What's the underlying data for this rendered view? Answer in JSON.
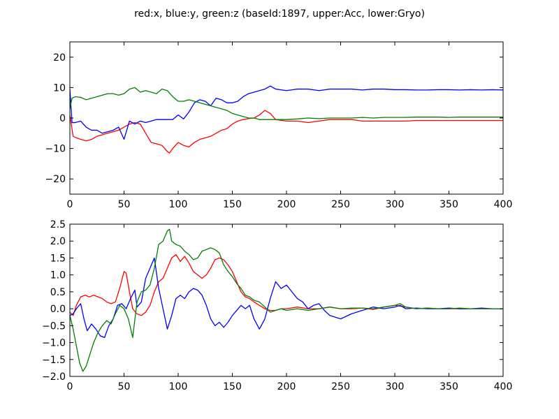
{
  "figure": {
    "title": "red:x, blue:y, green:z (baseId:1897, upper:Acc, lower:Gryo)"
  },
  "colors": {
    "x": "#ff0000",
    "y": "#0000ff",
    "z": "#008000"
  },
  "chart_data": [
    {
      "type": "line",
      "title": "",
      "xlabel": "",
      "ylabel": "",
      "xlim": [
        0,
        400
      ],
      "ylim": [
        -25,
        25
      ],
      "xticks": [
        0,
        50,
        100,
        150,
        200,
        250,
        300,
        350,
        400
      ],
      "yticks": [
        -20,
        -10,
        0,
        10,
        20
      ],
      "grid": false,
      "series": [
        {
          "key": "x",
          "x": [
            0,
            3,
            6,
            10,
            15,
            20,
            25,
            30,
            35,
            40,
            45,
            50,
            55,
            60,
            65,
            70,
            75,
            80,
            85,
            90,
            92,
            95,
            100,
            105,
            110,
            115,
            120,
            125,
            130,
            135,
            140,
            145,
            150,
            155,
            160,
            165,
            170,
            175,
            180,
            185,
            190,
            200,
            210,
            220,
            230,
            240,
            250,
            260,
            270,
            280,
            290,
            300,
            310,
            320,
            330,
            340,
            350,
            360,
            370,
            380,
            390,
            400
          ],
          "values": [
            1,
            -6,
            -6.5,
            -7,
            -7.5,
            -7,
            -6,
            -5.5,
            -5,
            -4.5,
            -4,
            -3,
            -2,
            -1.5,
            -2,
            -5,
            -8,
            -8.5,
            -9,
            -11,
            -11.5,
            -10,
            -8,
            -9,
            -9.5,
            -8,
            -7,
            -6.5,
            -6,
            -5,
            -4,
            -3.5,
            -2,
            -1,
            -0.5,
            -0.2,
            0,
            1,
            2.5,
            1.5,
            -0.5,
            -1,
            -1,
            -1.5,
            -1,
            -0.5,
            -0.5,
            -0.5,
            -1,
            -1,
            -1,
            -1,
            -1,
            -0.8,
            -0.8,
            -0.8,
            -0.8,
            -0.8,
            -0.8,
            -0.8,
            -0.8,
            -0.8
          ]
        },
        {
          "key": "y",
          "x": [
            0,
            2,
            5,
            10,
            15,
            20,
            25,
            30,
            35,
            40,
            45,
            50,
            55,
            60,
            65,
            70,
            75,
            80,
            85,
            90,
            95,
            100,
            105,
            110,
            115,
            120,
            125,
            130,
            135,
            140,
            145,
            150,
            155,
            160,
            165,
            170,
            175,
            180,
            185,
            190,
            200,
            210,
            220,
            230,
            240,
            250,
            260,
            270,
            280,
            290,
            300,
            310,
            320,
            330,
            340,
            350,
            360,
            370,
            380,
            390,
            400
          ],
          "values": [
            9.5,
            -1.5,
            -1.5,
            -1,
            -3,
            -4,
            -4,
            -5,
            -4.5,
            -4,
            -3,
            -7,
            -1,
            -2,
            -1,
            -1.5,
            -1,
            -0.5,
            -0.5,
            -0.5,
            -0.5,
            1,
            -0.3,
            2,
            5,
            6,
            5.5,
            4,
            6.5,
            6,
            5,
            5,
            5.5,
            7,
            8,
            8.5,
            9,
            9.5,
            10.5,
            9.5,
            9,
            9.5,
            9.5,
            9,
            9.5,
            9.5,
            9.5,
            9.2,
            9.5,
            9.5,
            9.3,
            9.3,
            9.2,
            9.2,
            9.3,
            9.3,
            9.2,
            9.3,
            9.2,
            9.3,
            9.2
          ]
        },
        {
          "key": "z",
          "x": [
            0,
            2,
            5,
            10,
            15,
            20,
            25,
            30,
            35,
            40,
            45,
            50,
            55,
            60,
            65,
            70,
            75,
            80,
            85,
            90,
            95,
            100,
            105,
            110,
            115,
            120,
            125,
            130,
            135,
            140,
            145,
            150,
            155,
            160,
            165,
            170,
            175,
            180,
            185,
            190,
            200,
            210,
            220,
            230,
            240,
            250,
            260,
            270,
            280,
            290,
            300,
            310,
            320,
            330,
            340,
            350,
            360,
            370,
            380,
            390,
            400
          ],
          "values": [
            3,
            6.5,
            7,
            6.8,
            6,
            6.5,
            7,
            7.5,
            8,
            8,
            7.5,
            8,
            9.5,
            10,
            8.5,
            9,
            8.5,
            8,
            9.5,
            9,
            7,
            5.5,
            5.5,
            6,
            5.5,
            5,
            4.5,
            4,
            3.5,
            3,
            2.5,
            1.5,
            1,
            0.5,
            0,
            0,
            -0.5,
            -0.5,
            -0.5,
            -0.5,
            -0.5,
            -0.3,
            0,
            -0.2,
            0,
            0,
            0,
            0.2,
            0,
            0.2,
            0.2,
            0.2,
            0.3,
            0.3,
            0.3,
            0.2,
            0.3,
            0.3,
            0.3,
            0.3,
            0.3
          ]
        }
      ]
    },
    {
      "type": "line",
      "title": "",
      "xlabel": "",
      "ylabel": "",
      "xlim": [
        0,
        400
      ],
      "ylim": [
        -2.0,
        2.5
      ],
      "xticks": [
        0,
        50,
        100,
        150,
        200,
        250,
        300,
        350,
        400
      ],
      "yticks": [
        -2.0,
        -1.5,
        -1.0,
        -0.5,
        0.0,
        0.5,
        1.0,
        1.5,
        2.0,
        2.5
      ],
      "ytick_labels": [
        "−2.0",
        "−1.5",
        "−1.0",
        "−0.5",
        "0.0",
        "0.5",
        "1.0",
        "1.5",
        "2.0",
        "2.5"
      ],
      "grid": false,
      "series": [
        {
          "key": "x",
          "x": [
            0,
            3,
            6,
            10,
            14,
            18,
            22,
            26,
            30,
            34,
            38,
            42,
            46,
            50,
            52,
            55,
            58,
            62,
            66,
            70,
            74,
            78,
            82,
            86,
            90,
            94,
            98,
            102,
            106,
            110,
            114,
            118,
            122,
            126,
            130,
            134,
            138,
            142,
            146,
            150,
            154,
            158,
            162,
            166,
            170,
            175,
            180,
            185,
            190,
            195,
            200,
            210,
            220,
            230,
            240,
            250,
            260,
            270,
            280,
            290,
            300,
            310,
            320,
            330,
            340,
            350,
            360,
            370,
            380,
            390,
            400
          ],
          "values": [
            -0.1,
            -0.2,
            0.1,
            0.35,
            0.4,
            0.35,
            0.4,
            0.35,
            0.3,
            0.2,
            0.15,
            0.2,
            0.6,
            1.1,
            1.05,
            0.5,
            0.0,
            -0.15,
            -0.2,
            -0.1,
            0.1,
            0.5,
            0.8,
            0.9,
            1.2,
            1.5,
            1.6,
            1.4,
            1.55,
            1.35,
            1.1,
            1.0,
            0.9,
            1.0,
            1.2,
            1.45,
            1.5,
            1.45,
            1.3,
            1.1,
            0.8,
            0.5,
            0.35,
            0.3,
            0.2,
            0.1,
            0.0,
            -0.05,
            -0.05,
            0.0,
            0.0,
            0.05,
            0.0,
            0.0,
            0.05,
            0.0,
            0.0,
            0.02,
            -0.02,
            0.05,
            0.1,
            0.05,
            0.0,
            0.02,
            0.0,
            0.0,
            0.0,
            0.0,
            0.0,
            0.0,
            0.0
          ]
        },
        {
          "key": "y",
          "x": [
            0,
            3,
            6,
            10,
            13,
            16,
            20,
            24,
            28,
            32,
            36,
            40,
            44,
            48,
            52,
            56,
            60,
            62,
            66,
            70,
            74,
            78,
            82,
            86,
            90,
            94,
            98,
            102,
            106,
            110,
            114,
            118,
            122,
            126,
            130,
            134,
            138,
            142,
            146,
            150,
            154,
            158,
            162,
            166,
            170,
            175,
            180,
            185,
            190,
            195,
            200,
            205,
            210,
            215,
            220,
            225,
            230,
            235,
            240,
            250,
            260,
            270,
            280,
            290,
            300,
            305,
            310,
            320,
            330,
            340,
            350,
            360,
            370,
            380,
            390,
            400
          ],
          "values": [
            -0.2,
            -0.15,
            0.0,
            0.15,
            -0.3,
            -0.65,
            -0.45,
            -0.6,
            -0.8,
            -0.85,
            -0.5,
            -0.3,
            0.1,
            0.15,
            0.0,
            0.3,
            0.55,
            0.05,
            0.2,
            0.9,
            1.2,
            1.5,
            0.6,
            0.0,
            -0.6,
            -0.2,
            0.3,
            0.4,
            0.3,
            0.5,
            0.6,
            0.55,
            0.4,
            0.1,
            -0.3,
            -0.5,
            -0.4,
            -0.55,
            -0.4,
            -0.2,
            -0.05,
            0.1,
            0.0,
            0.1,
            -0.3,
            -0.6,
            -0.3,
            0.3,
            0.8,
            0.6,
            0.7,
            0.5,
            0.3,
            0.2,
            0.0,
            0.1,
            0.15,
            -0.05,
            -0.2,
            -0.3,
            -0.15,
            -0.05,
            0.05,
            0.0,
            0.05,
            0.1,
            0.0,
            0.02,
            0.0,
            0.0,
            0.02,
            0.0,
            0.0,
            0.02,
            0.0,
            0.0
          ]
        },
        {
          "key": "z",
          "x": [
            0,
            3,
            6,
            9,
            12,
            15,
            18,
            22,
            26,
            30,
            34,
            38,
            42,
            46,
            50,
            54,
            58,
            62,
            66,
            70,
            74,
            78,
            82,
            86,
            90,
            92,
            94,
            98,
            102,
            106,
            110,
            114,
            118,
            122,
            126,
            130,
            134,
            138,
            142,
            146,
            150,
            154,
            158,
            162,
            166,
            170,
            175,
            180,
            185,
            190,
            195,
            200,
            210,
            220,
            230,
            240,
            250,
            260,
            270,
            280,
            290,
            300,
            305,
            310,
            320,
            330,
            340,
            350,
            360,
            370,
            380,
            390,
            400
          ],
          "values": [
            -0.2,
            -0.6,
            -1.1,
            -1.6,
            -1.85,
            -1.7,
            -1.4,
            -1.0,
            -0.7,
            -0.5,
            -0.35,
            -0.45,
            -0.15,
            0.1,
            0.0,
            -0.3,
            -0.85,
            0.2,
            0.5,
            0.55,
            0.7,
            1.2,
            1.9,
            2.0,
            2.3,
            2.35,
            2.0,
            1.9,
            1.85,
            1.7,
            1.6,
            1.45,
            1.5,
            1.7,
            1.75,
            1.8,
            1.75,
            1.65,
            1.3,
            1.1,
            0.95,
            0.75,
            0.6,
            0.4,
            0.35,
            0.25,
            0.2,
            0.05,
            -0.1,
            -0.05,
            0.0,
            -0.05,
            0.0,
            -0.05,
            0.0,
            0.05,
            0.0,
            0.02,
            0.02,
            0.0,
            0.05,
            0.1,
            0.15,
            0.05,
            0.0,
            0.02,
            0.0,
            0.0,
            0.02,
            0.0,
            0.0,
            0.0,
            0.0
          ]
        }
      ]
    }
  ]
}
